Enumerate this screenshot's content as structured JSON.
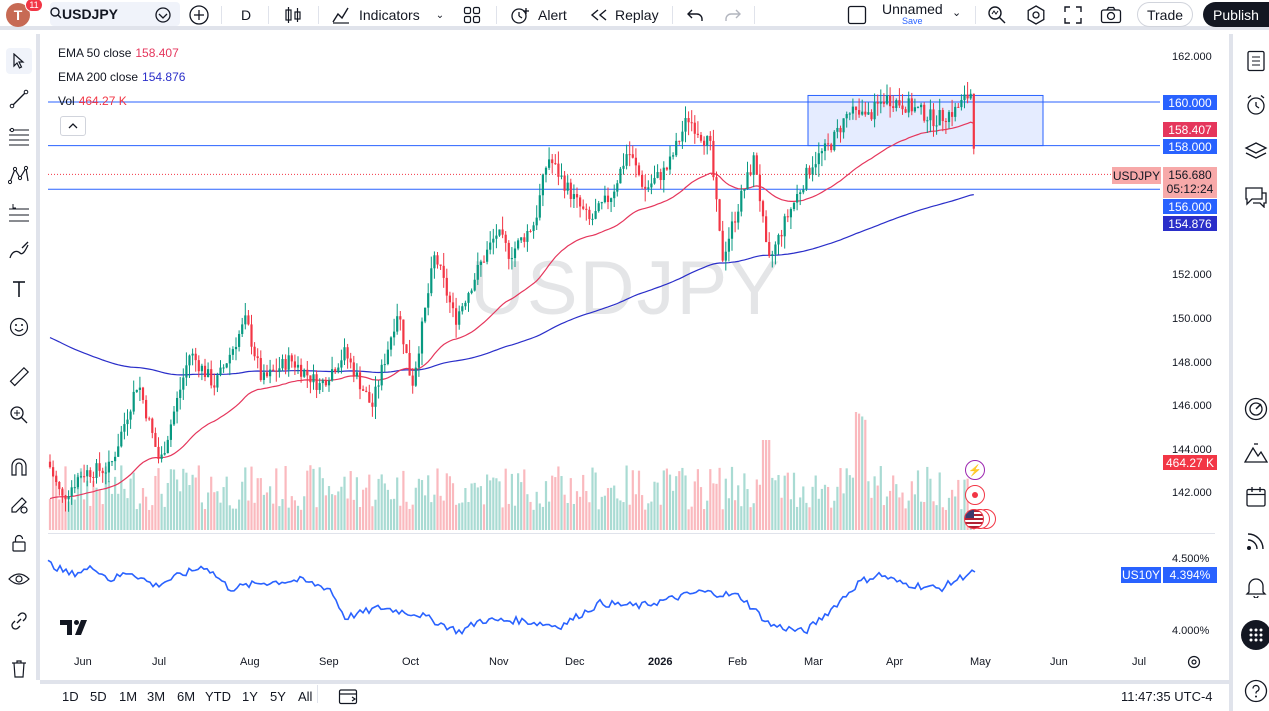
{
  "toolbar": {
    "avatar_letter": "T",
    "notif_count": "11",
    "symbol": "USDJPY",
    "interval": "D",
    "indicators_label": "Indicators",
    "alert_label": "Alert",
    "replay_label": "Replay",
    "layout_name": "Unnamed",
    "layout_status": "Save",
    "trade_label": "Trade",
    "publish_label": "Publish"
  },
  "legend": {
    "ema50_name": "EMA 50 close",
    "ema50_value": "158.407",
    "ema200_name": "EMA 200 close",
    "ema200_value": "154.876",
    "vol_name": "Vol",
    "vol_value": "464.27 K"
  },
  "watermark": "USDJPY",
  "price_axis": {
    "ticks": [
      "162.000",
      "160.000",
      "158.000",
      "156.000",
      "154.000",
      "152.000",
      "150.000",
      "148.000",
      "146.000",
      "144.000",
      "142.000"
    ],
    "labels": {
      "line_160": "160.000",
      "ema50": "158.407",
      "line_158": "158.000",
      "symbol": "USDJPY",
      "last": "156.680",
      "countdown": "05:12:24",
      "line_156": "156.000",
      "ema200": "154.876",
      "volume": "464.27 K"
    }
  },
  "us10y": {
    "name": "US10Y",
    "value": "4.394%",
    "tick_high": "4.500%",
    "tick_low": "4.000%"
  },
  "time_axis": [
    "Jun",
    "Jul",
    "Aug",
    "Sep",
    "Oct",
    "Nov",
    "Dec",
    "2026",
    "Feb",
    "Mar",
    "Apr",
    "May",
    "Jun",
    "Jul"
  ],
  "ranges": [
    "1D",
    "5D",
    "1M",
    "3M",
    "6M",
    "YTD",
    "1Y",
    "5Y",
    "All"
  ],
  "clock": "11:47:35 UTC-4",
  "colors": {
    "up": "#089981",
    "down": "#f23645",
    "ema50": "#e5365c",
    "ema200": "#2a2ec9",
    "hline": "#2962ff",
    "us10y": "#2962ff",
    "box_fill": "rgba(41,98,255,0.12)"
  },
  "chart_data": {
    "type": "candlestick",
    "symbol": "USDJPY",
    "timeframe": "D",
    "ylim": [
      140.8,
      163.0
    ],
    "price_path_approx": [
      {
        "month": "Jun",
        "close": 143.5
      },
      {
        "month": "Jul",
        "close": 147.0
      },
      {
        "month": "Aug",
        "close": 147.5
      },
      {
        "month": "Sep",
        "close": 147.8
      },
      {
        "month": "Oct",
        "close": 151.5
      },
      {
        "month": "Nov",
        "close": 154.5
      },
      {
        "month": "Dec",
        "close": 156.0
      },
      {
        "month": "2026",
        "close": 158.0
      },
      {
        "month": "Feb",
        "close": 153.0
      },
      {
        "month": "Mar",
        "close": 157.0
      },
      {
        "month": "Apr",
        "close": 159.5
      },
      {
        "month": "May",
        "close": 156.68
      }
    ],
    "horizontal_lines": [
      160.0,
      158.0,
      156.0
    ],
    "range_box": {
      "from": "Mar",
      "to": "May",
      "top": 160.3,
      "bottom": 158.0
    }
  }
}
